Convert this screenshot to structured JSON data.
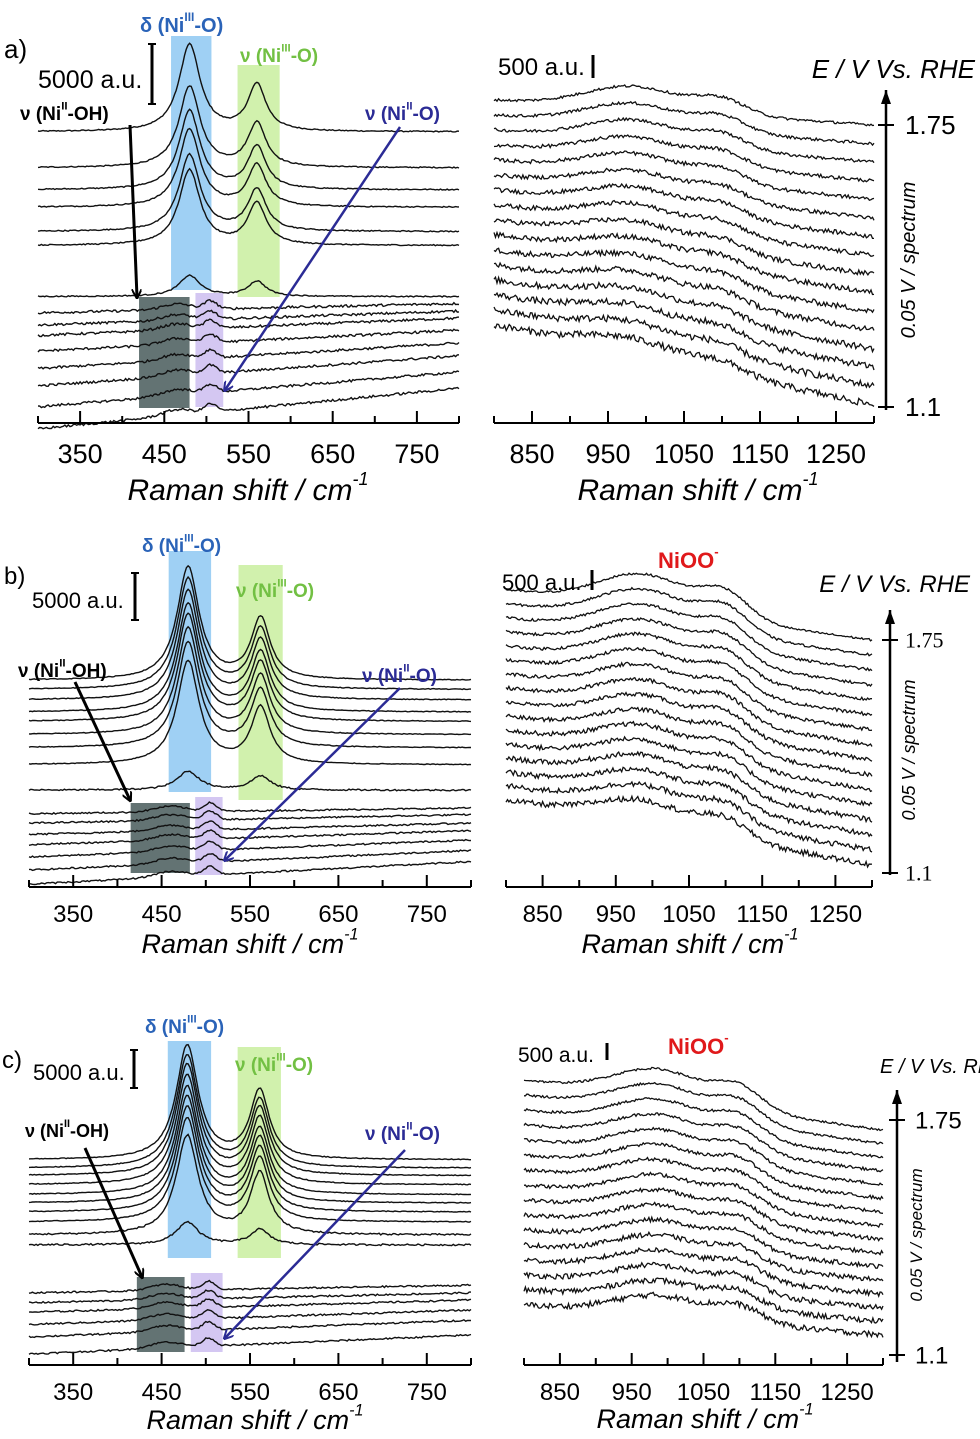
{
  "colors": {
    "delta_band": "#8ec8f2",
    "nu_band": "#c9ef9f",
    "nioh_band": "#5b6b6b",
    "nio_band": "#cdbdf0",
    "delta_label": "#2a63b8",
    "nu_label": "#72c043",
    "nio_label": "#2b2b95",
    "nioo_label": "#e0191b"
  },
  "chart_data": [
    {
      "panel_label": "a)",
      "left": {
        "type": "line",
        "xlabel": "Raman shift / cm",
        "xlabel_sup": "-1",
        "xlim": [
          300,
          800
        ],
        "ticks": [
          "350",
          "450",
          "550",
          "650",
          "750"
        ],
        "scale_bar": "5000 a.u.",
        "annotations": {
          "delta": {
            "pre": "δ (Ni",
            "sup": "III",
            "post": "-O)"
          },
          "nu3": {
            "pre": "ν (Ni",
            "sup": "III",
            "post": "-O)"
          },
          "nioh": {
            "pre": "ν (Ni",
            "sup": "II",
            "post": "-OH)"
          },
          "nio": {
            "pre": "ν (Ni",
            "sup": "II",
            "post": "-O)"
          }
        },
        "bands_cm": {
          "delta": [
            458,
            506
          ],
          "nu3": [
            537,
            587
          ],
          "nioh": [
            420,
            480
          ],
          "nio": [
            487,
            520
          ]
        },
        "peak_positions_cm": {
          "delta": 480,
          "nu3": 560,
          "nioh": 465,
          "nio": 505
        },
        "spectra": {
          "offset_au": [
            25100,
            22000,
            20100,
            18600,
            16500,
            15300,
            10900,
            10300,
            9650,
            9050,
            8000,
            6900,
            5800,
            4400,
            3000
          ],
          "delta_amp": [
            7500,
            7000,
            6800,
            6700,
            6600,
            6500,
            1800,
            0,
            0,
            0,
            0,
            0,
            0,
            0,
            0
          ],
          "nu3_amp": [
            4000,
            3800,
            3700,
            3600,
            3600,
            3600,
            1300,
            0,
            0,
            0,
            0,
            0,
            0,
            0,
            0
          ],
          "nioh_amp": [
            0,
            0,
            0,
            0,
            0,
            0,
            0,
            500,
            500,
            500,
            500,
            500,
            500,
            500,
            500
          ],
          "nio_amp": [
            0,
            0,
            0,
            0,
            0,
            0,
            0,
            700,
            700,
            700,
            700,
            700,
            700,
            700,
            700
          ],
          "tilt_au": [
            0,
            0,
            0,
            0,
            0,
            0,
            0,
            800,
            1200,
            1500,
            1800,
            2200,
            2600,
            3000,
            3500
          ]
        }
      },
      "right": {
        "type": "line",
        "xlabel": "Raman shift / cm",
        "xlabel_sup": "-1",
        "xlim": [
          800,
          1300
        ],
        "ticks": [
          "850",
          "950",
          "1050",
          "1150",
          "1250"
        ],
        "scale_bar": "500 a.u.",
        "potential_axis": {
          "title": "E / V Vs. RHE",
          "ticks": [
            "1.75",
            "1.1"
          ],
          "step_label": "0.05 V / spectrum"
        },
        "hump_positions_cm": [
          985,
          1100
        ],
        "hump_amps_au": [
          500,
          300
        ],
        "spectra": {
          "offset_au": [
            7020,
            6690,
            6370,
            6040,
            5720,
            5390,
            5070,
            4740,
            4410,
            4090,
            3760,
            3440,
            3110,
            2790,
            2460,
            2130
          ],
          "tilt_au": [
            -540,
            -620,
            -700,
            -780,
            -860,
            -940,
            -1020,
            -1100,
            -1180,
            -1260,
            -1340,
            -1420,
            -1500,
            -1580,
            -1660,
            -1740
          ]
        }
      }
    },
    {
      "panel_label": "b)",
      "left": {
        "type": "line",
        "xlabel": "Raman shift / cm",
        "xlabel_sup": "-1",
        "xlim": [
          300,
          800
        ],
        "ticks": [
          "350",
          "450",
          "550",
          "650",
          "750"
        ],
        "scale_bar": "5000 a.u.",
        "annotations": {
          "delta": {
            "pre": "δ (Ni",
            "sup": "III",
            "post": "-O)"
          },
          "nu3": {
            "pre": "ν (Ni",
            "sup": "III",
            "post": "-O)"
          },
          "nioh": {
            "pre": "ν (Ni",
            "sup": "II",
            "post": "-OH)"
          },
          "nio": {
            "pre": "ν (Ni",
            "sup": "II",
            "post": "-O)"
          }
        },
        "bands_cm": {
          "delta": [
            458,
            506
          ],
          "nu3": [
            537,
            587
          ],
          "nioh": [
            415,
            482
          ],
          "nio": [
            488,
            519
          ]
        },
        "peak_positions_cm": {
          "delta": 480,
          "nu3": 562,
          "nioh": 460,
          "nio": 505
        },
        "spectra": {
          "offset_au": [
            22000,
            21000,
            19900,
            18600,
            17600,
            16200,
            14800,
            13000,
            10300,
            8400,
            7700,
            6800,
            6000,
            5000,
            3900,
            2700
          ],
          "delta_amp": [
            12000,
            11800,
            11600,
            11500,
            11400,
            11300,
            11200,
            11000,
            2000,
            0,
            0,
            0,
            0,
            0,
            0,
            0
          ],
          "nu3_amp": [
            6500,
            6400,
            6300,
            6300,
            6200,
            6200,
            6100,
            6000,
            1500,
            0,
            0,
            0,
            0,
            0,
            0,
            0
          ],
          "nioh_amp": [
            0,
            0,
            0,
            0,
            0,
            0,
            0,
            0,
            0,
            600,
            600,
            600,
            600,
            600,
            600,
            600
          ],
          "nio_amp": [
            0,
            0,
            0,
            0,
            0,
            0,
            0,
            0,
            0,
            900,
            900,
            900,
            900,
            900,
            900,
            900
          ],
          "tilt_au": [
            0,
            0,
            0,
            0,
            0,
            0,
            0,
            0,
            0,
            600,
            900,
            1200,
            1500,
            1800,
            2100,
            2400
          ]
        }
      },
      "right": {
        "type": "line",
        "xlabel": "Raman shift / cm",
        "xlabel_sup": "-1",
        "xlim": [
          800,
          1300
        ],
        "ticks": [
          "850",
          "950",
          "1050",
          "1150",
          "1250"
        ],
        "scale_bar": "500 a.u.",
        "species_label": {
          "text": "NiOO",
          "sup": "-"
        },
        "potential_axis": {
          "title": "E / V Vs. RHE",
          "ticks": [
            "1.75",
            "1.1"
          ],
          "step_label": "0.05 V / spectrum"
        },
        "hump_positions_cm": [
          990,
          1100
        ],
        "hump_amps_au": [
          870,
          600
        ],
        "spectra": {
          "offset_au": [
            7425,
            7075,
            6725,
            6375,
            6025,
            5675,
            5325,
            4975,
            4625,
            4275,
            3925,
            3575,
            3225,
            2875,
            2525,
            2175
          ],
          "tilt_au": [
            -1250,
            -1275,
            -1300,
            -1325,
            -1350,
            -1375,
            -1400,
            -1425,
            -1450,
            -1475,
            -1500,
            -1525,
            -1550,
            -1575,
            -1600,
            -1625
          ]
        }
      }
    },
    {
      "panel_label": "c)",
      "left": {
        "type": "line",
        "xlabel": "Raman shift / cm",
        "xlabel_sup": "-1",
        "xlim": [
          300,
          800
        ],
        "ticks": [
          "350",
          "450",
          "550",
          "650",
          "750"
        ],
        "scale_bar": "5000 a.u.",
        "annotations": {
          "delta": {
            "pre": "δ (Ni",
            "sup": "III",
            "post": "-O)"
          },
          "nu3": {
            "pre": "ν (Ni",
            "sup": "III",
            "post": "-O)"
          },
          "nioh": {
            "pre": "ν (Ni",
            "sup": "II",
            "post": "-OH)"
          },
          "nio": {
            "pre": "ν (Ni",
            "sup": "II",
            "post": "-O)"
          }
        },
        "bands_cm": {
          "delta": [
            457,
            506
          ],
          "nu3": [
            536,
            585
          ],
          "nioh": [
            422,
            476
          ],
          "nio": [
            483,
            519
          ]
        },
        "peak_positions_cm": {
          "delta": 479,
          "nu3": 561,
          "nioh": 455,
          "nio": 503
        },
        "spectra": {
          "offset_au": [
            27000,
            25900,
            24900,
            23700,
            22400,
            21300,
            20100,
            18800,
            17100,
            15800,
            10500,
            9500,
            8550,
            7240,
            5900,
            3950
          ],
          "delta_amp": [
            15000,
            14800,
            14600,
            14400,
            14200,
            14000,
            13800,
            13600,
            13000,
            3000,
            0,
            0,
            0,
            0,
            0,
            0
          ],
          "nu3_amp": [
            9000,
            8900,
            8800,
            8700,
            8600,
            8500,
            8400,
            8300,
            8000,
            2000,
            0,
            0,
            0,
            0,
            0,
            0
          ],
          "nioh_amp": [
            0,
            0,
            0,
            0,
            0,
            0,
            0,
            0,
            0,
            0,
            800,
            800,
            800,
            800,
            800,
            800
          ],
          "nio_amp": [
            0,
            0,
            0,
            0,
            0,
            0,
            0,
            0,
            0,
            0,
            1100,
            1100,
            1100,
            1100,
            1100,
            1100
          ],
          "tilt_au": [
            0,
            0,
            0,
            0,
            0,
            0,
            0,
            0,
            0,
            0,
            1000,
            1300,
            1600,
            1900,
            2200,
            2500
          ]
        }
      },
      "right": {
        "type": "line",
        "xlabel": "Raman shift / cm",
        "xlabel_sup": "-1",
        "xlim": [
          800,
          1300
        ],
        "ticks": [
          "850",
          "950",
          "1050",
          "1150",
          "1250"
        ],
        "scale_bar": "500 a.u.",
        "species_label": {
          "text": "NiOO",
          "sup": "-"
        },
        "potential_axis": {
          "title": "E / V Vs. RHE",
          "ticks": [
            "1.75",
            "1.1"
          ],
          "step_label": "0.05 V / spectrum"
        },
        "hump_positions_cm": [
          990,
          1100
        ],
        "hump_amps_au": [
          880,
          590
        ],
        "spectra": {
          "offset_au": [
            8380,
            7939,
            7498,
            7057,
            6616,
            6175,
            5734,
            5293,
            4852,
            4411,
            3970,
            3529,
            3088,
            2647,
            2206,
            1765
          ],
          "tilt_au": [
            -1470,
            -1431,
            -1392,
            -1353,
            -1314,
            -1275,
            -1236,
            -1197,
            -1158,
            -1119,
            -1080,
            -1041,
            -1002,
            -963,
            -924,
            -885
          ]
        }
      }
    }
  ]
}
